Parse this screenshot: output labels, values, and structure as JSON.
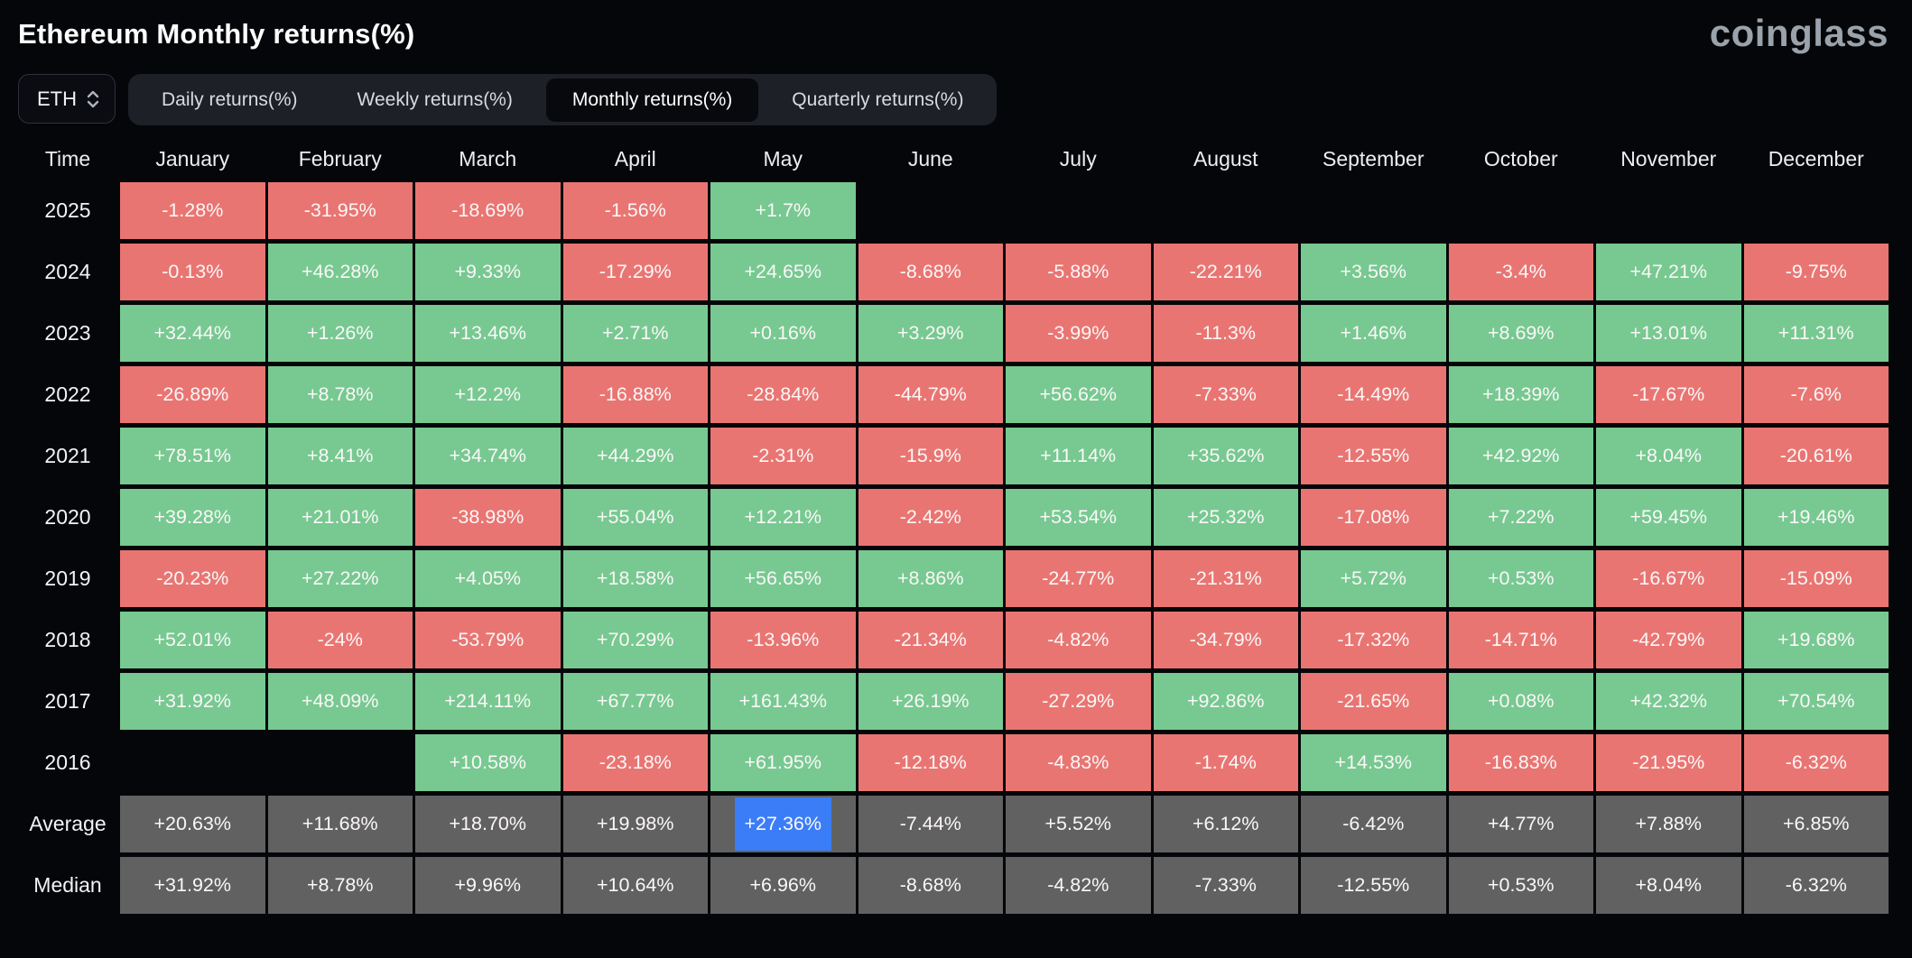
{
  "header": {
    "title": "Ethereum Monthly returns(%)",
    "logo": "coinglass"
  },
  "controls": {
    "symbol": "ETH",
    "tabs": [
      {
        "label": "Daily returns(%)",
        "active": false
      },
      {
        "label": "Weekly returns(%)",
        "active": false
      },
      {
        "label": "Monthly returns(%)",
        "active": true
      },
      {
        "label": "Quarterly returns(%)",
        "active": false
      }
    ]
  },
  "colors": {
    "positive": "#77c991",
    "negative": "#e97572",
    "summary": "#616161",
    "highlight": "#3b7df7",
    "background": "#050609"
  },
  "chart_data": {
    "type": "table",
    "title": "Ethereum Monthly returns(%)",
    "columns": [
      "Time",
      "January",
      "February",
      "March",
      "April",
      "May",
      "June",
      "July",
      "August",
      "September",
      "October",
      "November",
      "December"
    ],
    "rows": [
      {
        "label": "2025",
        "type": "year",
        "values": [
          "-1.28%",
          "-31.95%",
          "-18.69%",
          "-1.56%",
          "+1.7%",
          "",
          "",
          "",
          "",
          "",
          "",
          ""
        ]
      },
      {
        "label": "2024",
        "type": "year",
        "values": [
          "-0.13%",
          "+46.28%",
          "+9.33%",
          "-17.29%",
          "+24.65%",
          "-8.68%",
          "-5.88%",
          "-22.21%",
          "+3.56%",
          "-3.4%",
          "+47.21%",
          "-9.75%"
        ]
      },
      {
        "label": "2023",
        "type": "year",
        "values": [
          "+32.44%",
          "+1.26%",
          "+13.46%",
          "+2.71%",
          "+0.16%",
          "+3.29%",
          "-3.99%",
          "-11.3%",
          "+1.46%",
          "+8.69%",
          "+13.01%",
          "+11.31%"
        ]
      },
      {
        "label": "2022",
        "type": "year",
        "values": [
          "-26.89%",
          "+8.78%",
          "+12.2%",
          "-16.88%",
          "-28.84%",
          "-44.79%",
          "+56.62%",
          "-7.33%",
          "-14.49%",
          "+18.39%",
          "-17.67%",
          "-7.6%"
        ]
      },
      {
        "label": "2021",
        "type": "year",
        "values": [
          "+78.51%",
          "+8.41%",
          "+34.74%",
          "+44.29%",
          "-2.31%",
          "-15.9%",
          "+11.14%",
          "+35.62%",
          "-12.55%",
          "+42.92%",
          "+8.04%",
          "-20.61%"
        ]
      },
      {
        "label": "2020",
        "type": "year",
        "values": [
          "+39.28%",
          "+21.01%",
          "-38.98%",
          "+55.04%",
          "+12.21%",
          "-2.42%",
          "+53.54%",
          "+25.32%",
          "-17.08%",
          "+7.22%",
          "+59.45%",
          "+19.46%"
        ]
      },
      {
        "label": "2019",
        "type": "year",
        "values": [
          "-20.23%",
          "+27.22%",
          "+4.05%",
          "+18.58%",
          "+56.65%",
          "+8.86%",
          "-24.77%",
          "-21.31%",
          "+5.72%",
          "+0.53%",
          "-16.67%",
          "-15.09%"
        ]
      },
      {
        "label": "2018",
        "type": "year",
        "values": [
          "+52.01%",
          "-24%",
          "-53.79%",
          "+70.29%",
          "-13.96%",
          "-21.34%",
          "-4.82%",
          "-34.79%",
          "-17.32%",
          "-14.71%",
          "-42.79%",
          "+19.68%"
        ]
      },
      {
        "label": "2017",
        "type": "year",
        "values": [
          "+31.92%",
          "+48.09%",
          "+214.11%",
          "+67.77%",
          "+161.43%",
          "+26.19%",
          "-27.29%",
          "+92.86%",
          "-21.65%",
          "+0.08%",
          "+42.32%",
          "+70.54%"
        ]
      },
      {
        "label": "2016",
        "type": "year",
        "values": [
          "",
          "",
          "+10.58%",
          "-23.18%",
          "+61.95%",
          "-12.18%",
          "-4.83%",
          "-1.74%",
          "+14.53%",
          "-16.83%",
          "-21.95%",
          "-6.32%"
        ]
      },
      {
        "label": "Average",
        "type": "summary",
        "values": [
          "+20.63%",
          "+11.68%",
          "+18.70%",
          "+19.98%",
          "+27.36%",
          "-7.44%",
          "+5.52%",
          "+6.12%",
          "-6.42%",
          "+4.77%",
          "+7.88%",
          "+6.85%"
        ]
      },
      {
        "label": "Median",
        "type": "summary",
        "values": [
          "+31.92%",
          "+8.78%",
          "+9.96%",
          "+10.64%",
          "+6.96%",
          "-8.68%",
          "-4.82%",
          "-7.33%",
          "-12.55%",
          "+0.53%",
          "+8.04%",
          "-6.32%"
        ]
      }
    ],
    "highlighted_cell": {
      "row": "Average",
      "column": "May",
      "value": "+27.36%"
    }
  }
}
